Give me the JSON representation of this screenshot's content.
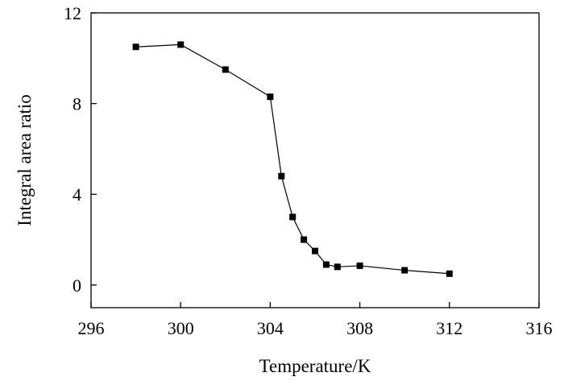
{
  "chart_data": {
    "type": "line",
    "title": "",
    "xlabel": "Temperature/K",
    "ylabel": "Integral area ratio",
    "xlim": [
      296,
      316
    ],
    "ylim": [
      -1,
      12
    ],
    "xticks": [
      296,
      300,
      304,
      308,
      312,
      316
    ],
    "yticks": [
      0,
      4,
      8,
      12
    ],
    "grid": false,
    "legend": "none",
    "marker": "square",
    "color": "#000000",
    "series": [
      {
        "x": [
          298,
          300,
          302,
          304,
          304.5,
          305,
          305.5,
          306,
          306.5,
          307,
          308,
          310,
          312
        ],
        "y": [
          10.5,
          10.6,
          9.5,
          8.3,
          4.8,
          3.0,
          2.0,
          1.5,
          0.9,
          0.8,
          0.85,
          0.65,
          0.5
        ]
      }
    ]
  }
}
